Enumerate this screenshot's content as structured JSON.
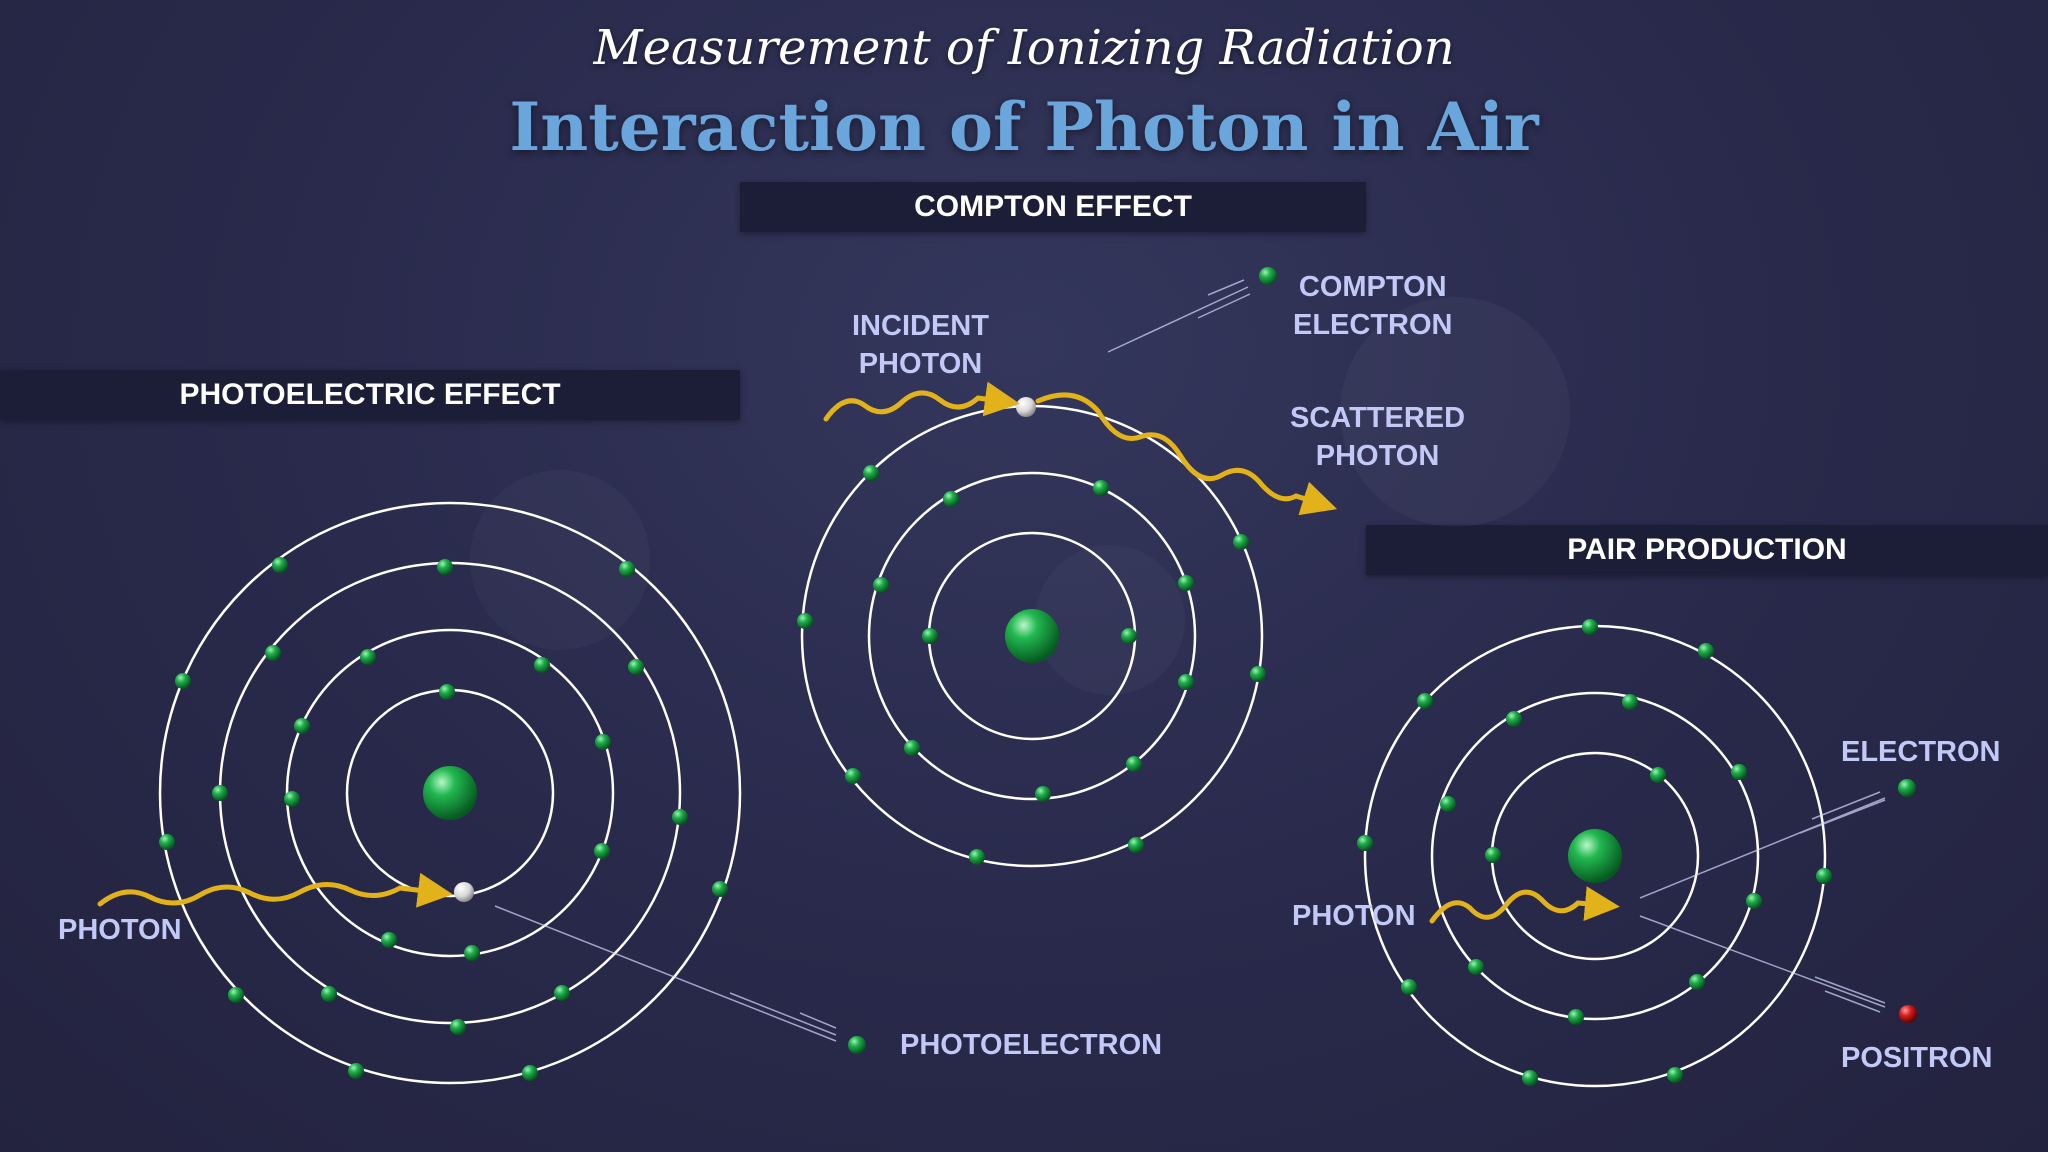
{
  "header": {
    "subtitle": "Measurement of Ionizing Radiation",
    "title": "Interaction of Photon in Air"
  },
  "sections": {
    "compton": {
      "heading": "COMPTON EFFECT",
      "incident_line1": "INCIDENT",
      "incident_line2": "PHOTON",
      "electron_line1": "COMPTON",
      "electron_line2": "ELECTRON",
      "scattered_line1": "SCATTERED",
      "scattered_line2": "PHOTON"
    },
    "photoelectric": {
      "heading": "PHOTOELECTRIC EFFECT",
      "photon_label": "PHOTON",
      "electron_label": "PHOTOELECTRON"
    },
    "pair": {
      "heading": "PAIR PRODUCTION",
      "photon_label": "PHOTON",
      "electron_label": "ELECTRON",
      "positron_label": "POSITRON"
    }
  },
  "colors": {
    "orbit": "#ffffff",
    "electron": "#1fae4a",
    "photon": "#e2b21a",
    "positron": "#d81c1c",
    "label": "#c3c9f6",
    "title_accent": "#6aa6dc"
  }
}
